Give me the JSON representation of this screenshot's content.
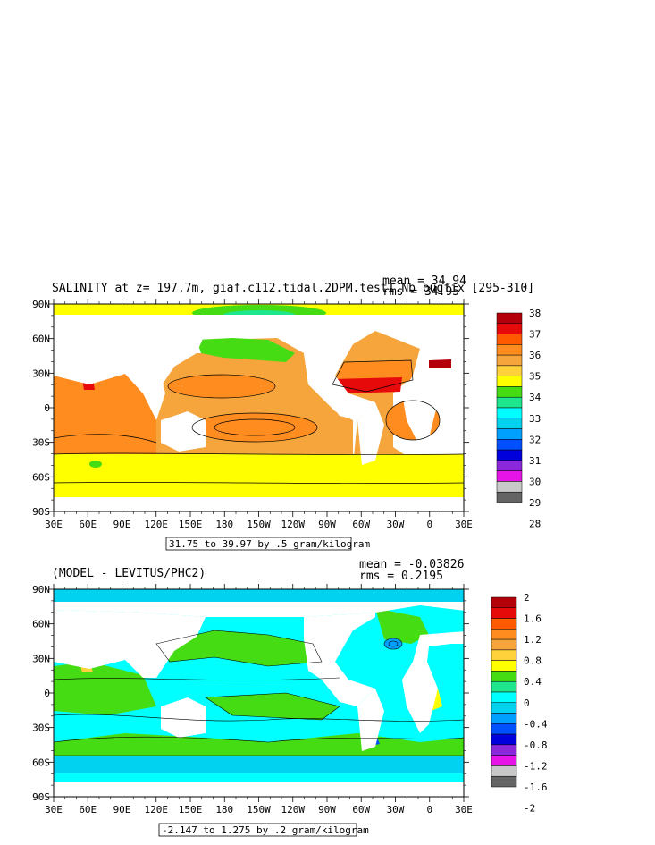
{
  "chart_data": [
    {
      "type": "heatmap",
      "title": "SALINITY at z= 197.7m, giaf.c112.tidal.2DPM.test1.Nb bugfix [295-310]",
      "mean_label": "mean = 34.94",
      "rms_label": "rms = 34.95",
      "range_label": "31.75 to 39.97 by .5 gram/kilogram",
      "x_ticks": [
        "30E",
        "60E",
        "90E",
        "120E",
        "150E",
        "180",
        "150W",
        "120W",
        "90W",
        "60W",
        "30W",
        "0",
        "30E"
      ],
      "y_ticks": [
        "90N",
        "60N",
        "30N",
        "0",
        "30S",
        "60S",
        "90S"
      ],
      "colorbar_labels": [
        "38",
        "37",
        "36",
        "35",
        "34",
        "33",
        "32",
        "31",
        "30",
        "29",
        "28"
      ],
      "colorbar_colors": [
        "#b4000a",
        "#e60a0a",
        "#ff5a00",
        "#ff8c1e",
        "#f5a53c",
        "#ffd23c",
        "#ffff00",
        "#46dc14",
        "#1ee68c",
        "#00ffff",
        "#00d2f0",
        "#00a0ff",
        "#0050ff",
        "#0000dc",
        "#8c28dc",
        "#e614e6",
        "#c8c8c8",
        "#646464"
      ]
    },
    {
      "type": "heatmap",
      "title": "(MODEL - LEVITUS/PHC2)",
      "mean_label": "mean = -0.03826",
      "rms_label": "rms = 0.2195",
      "range_label": "-2.147 to 1.275 by .2 gram/kilogram",
      "x_ticks": [
        "30E",
        "60E",
        "90E",
        "120E",
        "150E",
        "180",
        "150W",
        "120W",
        "90W",
        "60W",
        "30W",
        "0",
        "30E"
      ],
      "y_ticks": [
        "90N",
        "60N",
        "30N",
        "0",
        "30S",
        "60S",
        "90S"
      ],
      "colorbar_labels": [
        "2",
        "1.6",
        "1.2",
        "0.8",
        "0.4",
        "0",
        "-0.4",
        "-0.8",
        "-1.2",
        "-1.6",
        "-2"
      ],
      "colorbar_colors": [
        "#b4000a",
        "#e60a0a",
        "#ff5a00",
        "#ff8c1e",
        "#f5a53c",
        "#ffd23c",
        "#ffff00",
        "#46dc14",
        "#1ee68c",
        "#00ffff",
        "#00d2f0",
        "#00a0ff",
        "#0050ff",
        "#0000dc",
        "#8c28dc",
        "#e614e6",
        "#c8c8c8",
        "#646464"
      ]
    }
  ]
}
